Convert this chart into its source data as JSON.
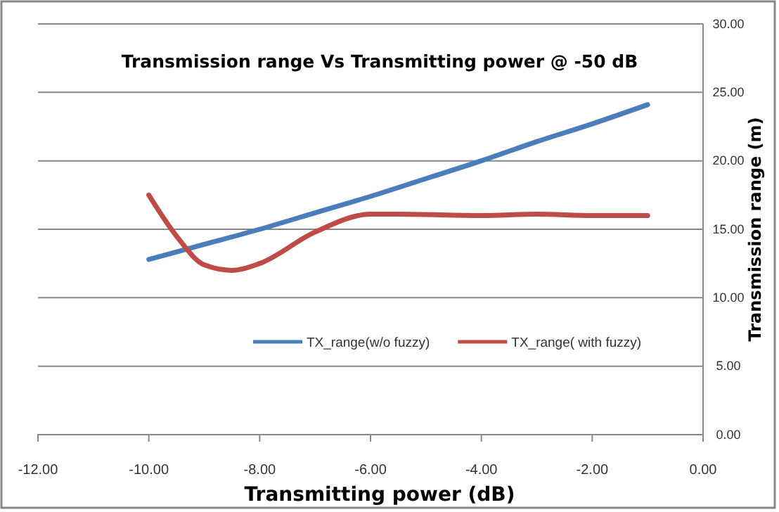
{
  "chart_data": {
    "type": "line",
    "title": "Transmission range Vs Transmitting power @ -50 dB",
    "xlabel": "Transmitting power (dB)",
    "ylabel": "Transmission range (m)",
    "xlim": [
      -12,
      0
    ],
    "xticks": [
      {
        "value": -12,
        "label": "-12.00"
      },
      {
        "value": -10,
        "label": "-10.00"
      },
      {
        "value": -8,
        "label": "-8.00"
      },
      {
        "value": -6,
        "label": "-6.00"
      },
      {
        "value": -4,
        "label": "-4.00"
      },
      {
        "value": -2,
        "label": "-2.00"
      },
      {
        "value": 0,
        "label": "0.00"
      }
    ],
    "ylim": [
      0,
      30
    ],
    "yticks": [
      {
        "value": 0,
        "label": "0.00"
      },
      {
        "value": 5,
        "label": "5.00"
      },
      {
        "value": 10,
        "label": "10.00"
      },
      {
        "value": 15,
        "label": "15.00"
      },
      {
        "value": 20,
        "label": "20.00"
      },
      {
        "value": 25,
        "label": "25.00"
      },
      {
        "value": 30,
        "label": "30.00"
      }
    ],
    "grid": "y",
    "legend": "right",
    "series": [
      {
        "name": "TX_range(w/o fuzzy)",
        "color": "#4a7ebb",
        "x": [
          -10,
          -9,
          -8,
          -7,
          -6,
          -5,
          -4,
          -3,
          -2,
          -1
        ],
        "values": [
          12.8,
          13.9,
          15.0,
          16.2,
          17.4,
          18.7,
          20.0,
          21.4,
          22.7,
          24.1
        ]
      },
      {
        "name": "TX_range( with fuzzy)",
        "color": "#be4b48",
        "x": [
          -10,
          -9.5,
          -9,
          -8.5,
          -8,
          -7,
          -6,
          -5.5,
          -4,
          -3,
          -2,
          -1
        ],
        "values": [
          17.5,
          14.5,
          12.4,
          12.0,
          12.5,
          14.8,
          16.1,
          16.1,
          16.0,
          16.1,
          16.0,
          16.0
        ]
      }
    ]
  }
}
